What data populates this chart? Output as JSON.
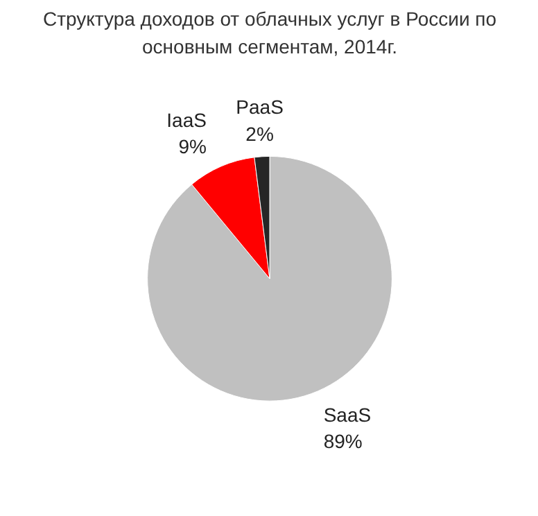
{
  "chart_data": {
    "type": "pie",
    "title": "Структура доходов от облачных услуг в России по основным сегментам, 2014г.",
    "categories": [
      "SaaS",
      "IaaS",
      "PaaS"
    ],
    "values": [
      89,
      9,
      2
    ],
    "colors": [
      "#c0c0c0",
      "#ff0000",
      "#262626"
    ],
    "value_labels": [
      "89%",
      "9%",
      "2%"
    ]
  }
}
